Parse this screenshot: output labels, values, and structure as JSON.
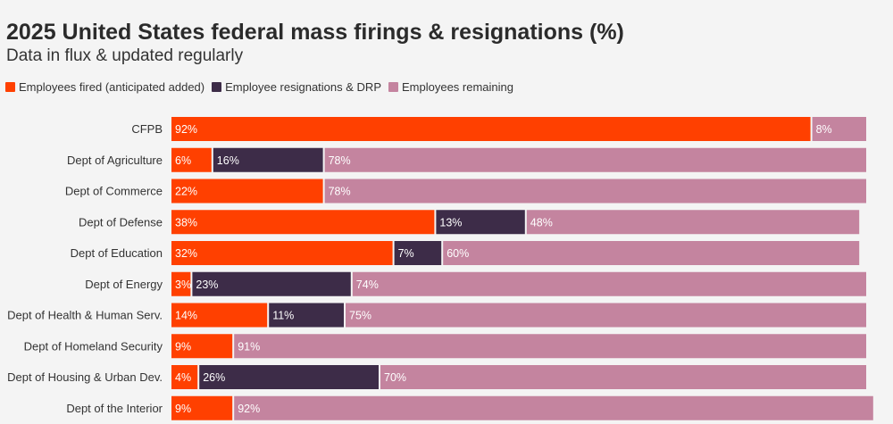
{
  "chart_data": {
    "type": "bar",
    "orientation": "horizontal",
    "stacked": true,
    "title": "2025 United States federal mass firings & resignations (%)",
    "subtitle": "Data in flux & updated regularly",
    "legend_position": "top-left",
    "categories": [
      "CFPB",
      "Dept of Agriculture",
      "Dept of Commerce",
      "Dept of Defense",
      "Dept of Education",
      "Dept of Energy",
      "Dept of Health & Human Serv.",
      "Dept of Homeland Security",
      "Dept of Housing & Urban Dev.",
      "Dept of the Interior"
    ],
    "series": [
      {
        "name": "Employees fired (anticipated added)",
        "color": "#ff4000",
        "label_color": "#ffffff",
        "values": [
          92,
          6,
          22,
          38,
          32,
          3,
          14,
          9,
          4,
          9
        ]
      },
      {
        "name": "Employee resignations & DRP",
        "color": "#3d2c48",
        "label_color": "#ffffff",
        "values": [
          null,
          16,
          null,
          13,
          7,
          23,
          11,
          null,
          26,
          null
        ]
      },
      {
        "name": "Employees remaining",
        "color": "#c4849f",
        "label_color": "#ffffff",
        "values": [
          8,
          78,
          78,
          48,
          60,
          74,
          75,
          91,
          70,
          92
        ]
      }
    ],
    "value_suffix": "%",
    "xlim": [
      0,
      100
    ],
    "grid": false
  }
}
